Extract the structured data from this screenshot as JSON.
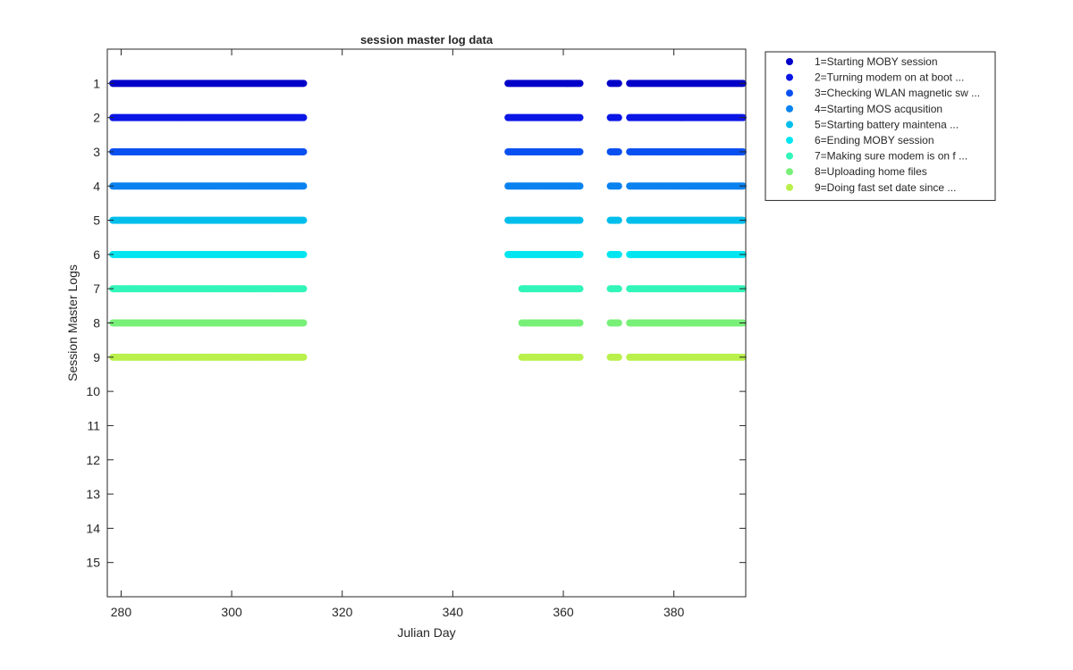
{
  "chart_data": {
    "type": "scatter",
    "title": "session master log data",
    "xlabel": "Julian Day",
    "ylabel": "Session Master Logs",
    "xlim": [
      277.5,
      393
    ],
    "ylim": [
      0,
      16
    ],
    "y_reversed": true,
    "xticks": [
      280,
      300,
      320,
      340,
      360,
      380
    ],
    "yticks": [
      1,
      2,
      3,
      4,
      5,
      6,
      7,
      8,
      9,
      10,
      11,
      12,
      13,
      14,
      15
    ],
    "grid": false,
    "legend_position": "outside-right-top",
    "marker": "filled-circle",
    "series": [
      {
        "name": "1=Starting MOBY session",
        "y": 1,
        "color": "#0000c8",
        "segments": [
          [
            278.5,
            313
          ],
          [
            350,
            363
          ],
          [
            368.5,
            370
          ],
          [
            372,
            392.5
          ]
        ]
      },
      {
        "name": "2=Turning modem on at boot  ...",
        "y": 2,
        "color": "#0a16e6",
        "segments": [
          [
            278.5,
            313
          ],
          [
            350,
            363
          ],
          [
            368.5,
            370
          ],
          [
            372,
            392.5
          ]
        ]
      },
      {
        "name": "3=Checking WLAN magnetic sw ...",
        "y": 3,
        "color": "#0a50f0",
        "segments": [
          [
            278.5,
            313
          ],
          [
            350,
            363
          ],
          [
            368.5,
            370
          ],
          [
            372,
            392.5
          ]
        ]
      },
      {
        "name": "4=Starting MOS acqusition",
        "y": 4,
        "color": "#0a82f0",
        "segments": [
          [
            278.5,
            313
          ],
          [
            350,
            363
          ],
          [
            368.5,
            370
          ],
          [
            372,
            392.5
          ]
        ]
      },
      {
        "name": "5=Starting battery maintena ...",
        "y": 5,
        "color": "#00beeb",
        "segments": [
          [
            278.5,
            313
          ],
          [
            350,
            363
          ],
          [
            368.5,
            370
          ],
          [
            372,
            392.5
          ]
        ]
      },
      {
        "name": "6=Ending MOBY session",
        "y": 6,
        "color": "#00e6f0",
        "segments": [
          [
            278.5,
            313
          ],
          [
            350,
            363
          ],
          [
            368.5,
            370
          ],
          [
            372,
            392.5
          ]
        ]
      },
      {
        "name": "7=Making sure modem is on f ...",
        "y": 7,
        "color": "#32f5b9",
        "segments": [
          [
            278.5,
            313
          ],
          [
            352.5,
            363
          ],
          [
            368.5,
            370
          ],
          [
            372,
            392.5
          ]
        ]
      },
      {
        "name": "8=Uploading home files",
        "y": 8,
        "color": "#78f078",
        "segments": [
          [
            278.5,
            313
          ],
          [
            352.5,
            363
          ],
          [
            368.5,
            370
          ],
          [
            372,
            392.5
          ]
        ]
      },
      {
        "name": "9=Doing fast set date since ...",
        "y": 9,
        "color": "#b9f04b",
        "segments": [
          [
            278.5,
            313
          ],
          [
            352.5,
            363
          ],
          [
            368.5,
            370
          ],
          [
            372,
            392.5
          ]
        ]
      }
    ]
  }
}
